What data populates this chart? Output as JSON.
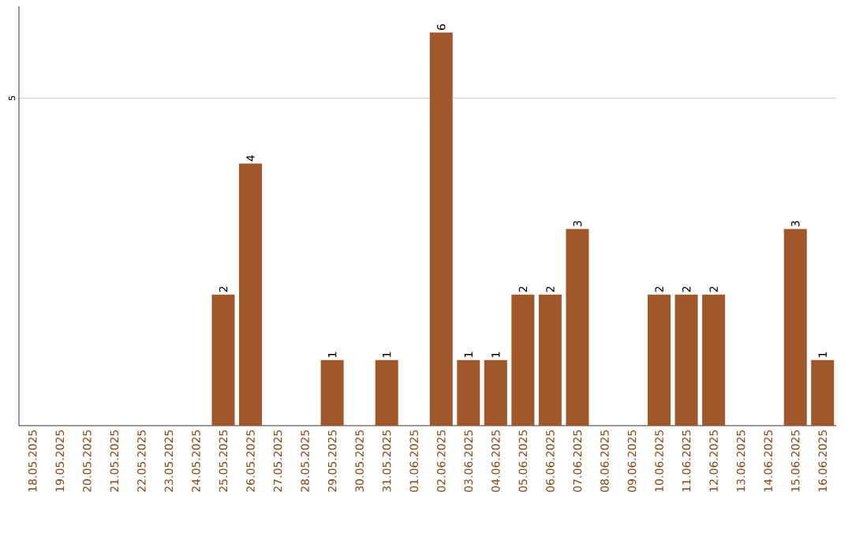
{
  "chart_data": {
    "type": "bar",
    "categories": [
      "18.05.2025",
      "19.05.2025",
      "20.05.2025",
      "21.05.2025",
      "22.05.2025",
      "23.05.2025",
      "24.05.2025",
      "25.05.2025",
      "26.05.2025",
      "27.05.2025",
      "28.05.2025",
      "29.05.2025",
      "30.05.2025",
      "31.05.2025",
      "01.06.2025",
      "02.06.2025",
      "03.06.2025",
      "04.06.2025",
      "05.06.2025",
      "06.06.2025",
      "07.06.2025",
      "08.06.2025",
      "09.06.2025",
      "10.06.2025",
      "11.06.2025",
      "12.06.2025",
      "13.06.2025",
      "14.06.2025",
      "15.06.2025",
      "16.06.2025"
    ],
    "values": [
      0,
      0,
      0,
      0,
      0,
      0,
      0,
      2,
      4,
      0,
      0,
      1,
      0,
      1,
      0,
      6,
      1,
      1,
      2,
      2,
      3,
      0,
      0,
      2,
      2,
      2,
      0,
      0,
      3,
      1
    ],
    "value_labels": [
      null,
      null,
      null,
      null,
      null,
      null,
      null,
      "2",
      "4",
      null,
      null,
      "1",
      null,
      "1",
      null,
      "6",
      "1",
      "1",
      "2",
      "2",
      "3",
      null,
      null,
      "2",
      "2",
      "2",
      null,
      null,
      "3",
      "1"
    ],
    "color": "#a0572a",
    "ylim": [
      0,
      6.4
    ],
    "yticks": [
      5
    ],
    "grid": "y"
  }
}
